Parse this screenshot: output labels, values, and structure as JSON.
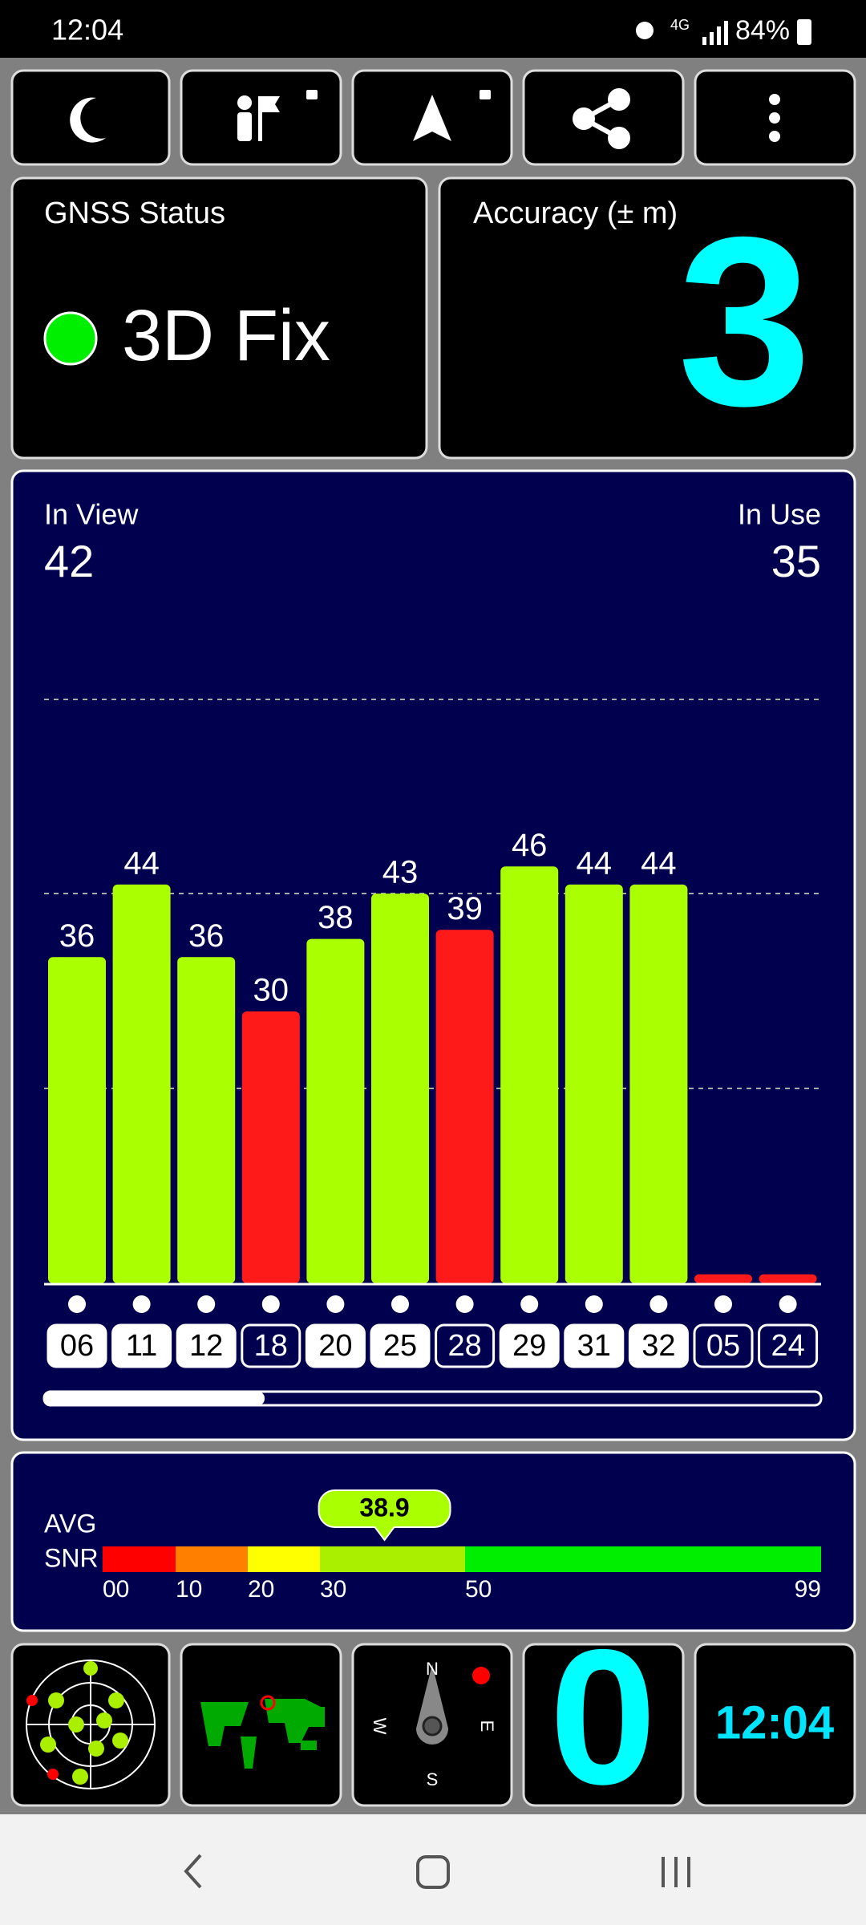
{
  "status_bar": {
    "time": "12:04",
    "network": "4G",
    "battery": "84%"
  },
  "gnss_status": {
    "title": "GNSS Status",
    "fix": "3D Fix"
  },
  "accuracy": {
    "title": "Accuracy (± m)",
    "value": 3
  },
  "satellites": {
    "in_view_label": "In View",
    "in_view": 42,
    "in_use_label": "In Use",
    "in_use": 35,
    "colors": {
      "used": "#aaff00",
      "unused": "#ff1a1a"
    },
    "bars": [
      {
        "id": "06",
        "snr": 36,
        "used": true
      },
      {
        "id": "11",
        "snr": 44,
        "used": true
      },
      {
        "id": "12",
        "snr": 36,
        "used": true
      },
      {
        "id": "18",
        "snr": 30,
        "used": false
      },
      {
        "id": "20",
        "snr": 38,
        "used": true
      },
      {
        "id": "25",
        "snr": 43,
        "used": true
      },
      {
        "id": "28",
        "snr": 39,
        "used": false
      },
      {
        "id": "29",
        "snr": 46,
        "used": true
      },
      {
        "id": "31",
        "snr": 44,
        "used": true
      },
      {
        "id": "32",
        "snr": 44,
        "used": true
      },
      {
        "id": "05",
        "snr": 1,
        "used": false
      },
      {
        "id": "24",
        "snr": 1,
        "used": false
      }
    ]
  },
  "avg_snr": {
    "label_1": "AVG",
    "label_2": "SNR",
    "value": 38.9,
    "ticks": [
      {
        "value": 0,
        "label": "00"
      },
      10,
      20,
      30,
      50,
      99
    ],
    "colors": [
      "#ff0000",
      "#ff8000",
      "#ffff00",
      "#aaee00",
      "#00ee00"
    ]
  },
  "widgets": {
    "compass": {
      "n": "N",
      "e": "E",
      "s": "S",
      "w": "W"
    },
    "speed": 0,
    "clock": "12:04"
  }
}
